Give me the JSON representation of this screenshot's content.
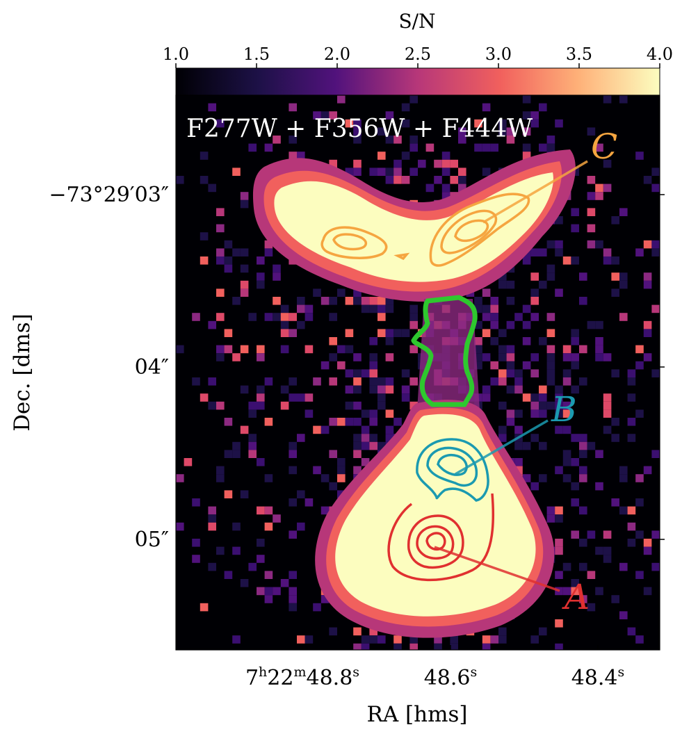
{
  "colorbar": {
    "label": "S/N",
    "ticks": [
      "1.0",
      "1.5",
      "2.0",
      "2.5",
      "3.0",
      "3.5",
      "4.0"
    ],
    "range": [
      1.0,
      4.0
    ],
    "colormap": [
      "#000004",
      "#3b0f70",
      "#8c2981",
      "#de4968",
      "#fe9f6d",
      "#fcfdbf"
    ]
  },
  "chart_data": {
    "type": "heatmap",
    "title": "F277W + F356W + F444W",
    "xlabel": "RA [hms]",
    "ylabel": "Dec. [dms]",
    "x_ticks": [
      {
        "label": "7h22m48.8s",
        "parts": [
          "7",
          "h",
          "22",
          "m",
          "48.8",
          "s"
        ]
      },
      {
        "label": "48.6s",
        "parts": [
          "48.6",
          "s"
        ]
      },
      {
        "label": "48.4s",
        "parts": [
          "48.4",
          "s"
        ]
      }
    ],
    "y_ticks": [
      "−73°29′03″",
      "04″",
      "05″"
    ],
    "grid": false,
    "value_range": [
      1.0,
      4.0
    ],
    "images": [
      {
        "label": "C",
        "color": "#f5a540",
        "description_position": "upper arc"
      },
      {
        "label": "B",
        "color": "#1b9ab0",
        "description_position": "lower blob, upper part"
      },
      {
        "label": "A",
        "color": "#e03030",
        "description_position": "lower blob, lower part"
      }
    ],
    "region": {
      "color": "#2ec82e",
      "shape": "aperture between upper arc and lower blob"
    }
  },
  "labels": {
    "image_c": "C",
    "image_b": "B",
    "image_a": "A"
  },
  "colors": {
    "image_c": "#f5a540",
    "image_b": "#1b9ab0",
    "image_a": "#e03030",
    "aperture": "#2ec82e"
  }
}
